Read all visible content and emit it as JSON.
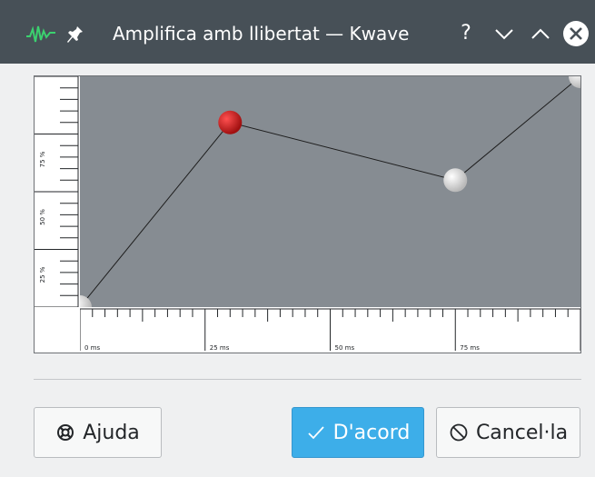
{
  "window": {
    "title": "Amplifica amb llibertat — Kwave",
    "help_glyph": "?",
    "app_icon": "kwave-waveform-icon",
    "pin_icon": "pin-icon",
    "titlebar_color": "#475057"
  },
  "chart_data": {
    "type": "line",
    "x": [
      0,
      30,
      75,
      100
    ],
    "y": [
      0,
      80,
      55,
      100
    ],
    "xlabel": "",
    "ylabel": "",
    "xlim": [
      0,
      100
    ],
    "ylim": [
      0,
      100
    ],
    "x_tick_labels": [
      "0 ms",
      "25 ms",
      "50 ms",
      "75 ms"
    ],
    "y_tick_labels": [
      "25 %",
      "50 %",
      "75 %"
    ],
    "selected_point_index": 1,
    "colors": {
      "background": "#868c92",
      "line": "#1e1e1e",
      "selected_point": "#a01010",
      "point": "#e8e8e8"
    }
  },
  "buttons": {
    "help": {
      "label": "Ajuda",
      "icon": "lifebuoy-icon"
    },
    "ok": {
      "label": "D'acord",
      "icon": "checkmark-icon",
      "color": "#3daee9"
    },
    "cancel": {
      "label": "Cancel·la",
      "icon": "cancel-icon"
    }
  }
}
